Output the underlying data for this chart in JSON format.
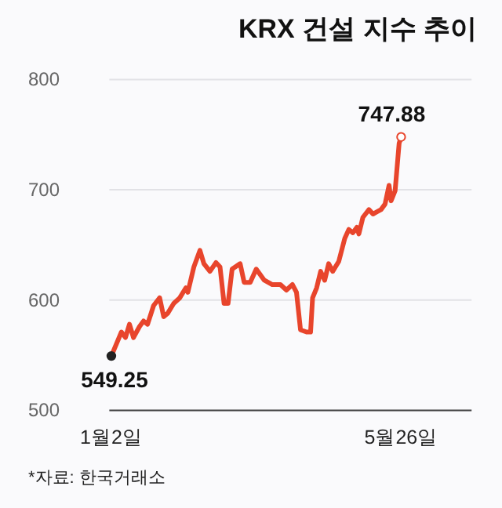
{
  "chart_data": {
    "type": "line",
    "title": "KRX 건설 지수 추이",
    "annotations": [
      "*자료: 한국거래소"
    ],
    "x": [
      "--01-02",
      "--01-07",
      "--01-09",
      "--01-11",
      "--01-13",
      "--01-16",
      "--01-18",
      "--01-20",
      "--01-23",
      "--01-26",
      "--01-28",
      "--01-30",
      "--02-02",
      "--02-05",
      "--02-08",
      "--02-09",
      "--02-12",
      "--02-15",
      "--02-17",
      "--02-20",
      "--02-23",
      "--02-25",
      "--02-27",
      "--03-01",
      "--03-03",
      "--03-07",
      "--03-09",
      "--03-12",
      "--03-15",
      "--03-19",
      "--03-23",
      "--03-27",
      "--03-30",
      "--04-02",
      "--04-04",
      "--04-06",
      "--04-09",
      "--04-11",
      "--04-12",
      "--04-14",
      "--04-16",
      "--04-18",
      "--04-20",
      "--04-22",
      "--04-25",
      "--04-28",
      "--04-30",
      "--05-02",
      "--05-04",
      "--05-05",
      "--05-07",
      "--05-10",
      "--05-12",
      "--05-14",
      "--05-16",
      "--05-18",
      "--05-20",
      "--05-21",
      "--05-23",
      "--05-25",
      "--05-26"
    ],
    "series": [
      {
        "color": "#e8452c",
        "values": [
          549.25,
          571,
          566,
          578,
          566,
          576,
          581,
          578,
          595,
          602,
          585,
          588,
          597,
          602,
          611,
          607,
          630,
          645,
          633,
          626,
          634,
          630,
          597,
          597,
          628,
          633,
          616,
          616,
          628,
          618,
          614,
          614,
          609,
          614,
          607,
          573,
          571,
          571,
          602,
          611,
          626,
          618,
          633,
          626,
          635,
          656,
          664,
          661,
          666,
          660,
          675,
          682,
          678,
          680,
          682,
          687,
          704,
          690,
          699,
          742,
          747.88
        ],
        "value_labels": [
          "549.25",
          null,
          null,
          null,
          null,
          null,
          null,
          null,
          null,
          null,
          null,
          null,
          null,
          null,
          null,
          null,
          null,
          null,
          null,
          null,
          null,
          null,
          null,
          null,
          null,
          null,
          null,
          null,
          null,
          null,
          null,
          null,
          null,
          null,
          null,
          null,
          null,
          null,
          null,
          null,
          null,
          null,
          null,
          null,
          null,
          null,
          null,
          null,
          null,
          null,
          null,
          null,
          null,
          null,
          null,
          null,
          null,
          null,
          null,
          null,
          "747.88"
        ]
      }
    ],
    "xlim": [
      "--01-01",
      "--06-30"
    ],
    "xticks": [
      {
        "value": "--01-02",
        "label": "1월2일"
      },
      {
        "value": "--05-26",
        "label": "5월26일"
      }
    ],
    "ylim": [
      500,
      800
    ],
    "yticks": [
      500,
      600,
      700,
      800
    ],
    "grid": "y",
    "line_style": "solid"
  }
}
